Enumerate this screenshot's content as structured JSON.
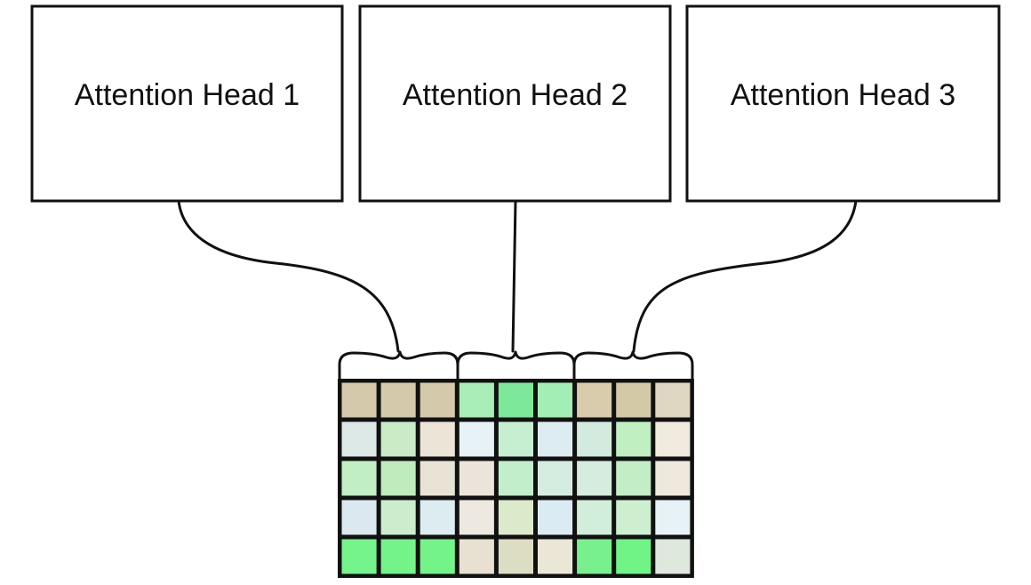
{
  "heads": [
    {
      "label": "Attention Head 1"
    },
    {
      "label": "Attention Head 2"
    },
    {
      "label": "Attention Head 3"
    }
  ],
  "grid": {
    "rows": 5,
    "cols": 9,
    "border_color": "#111111",
    "cell_colors": [
      [
        "#d4c9ab",
        "#d4c9ab",
        "#d4c9ab",
        "#a9eeb8",
        "#7ee89a",
        "#a2eeb5",
        "#d8ccad",
        "#d4c9a6",
        "#e0d7c2"
      ],
      [
        "#dde9e7",
        "#c9ecc6",
        "#ece4d6",
        "#e7f2f7",
        "#c6efd1",
        "#dcecf2",
        "#d3eade",
        "#c0efc2",
        "#f0eadf"
      ],
      [
        "#c2eec4",
        "#beecbc",
        "#e8e3d4",
        "#ebe4da",
        "#c2eecb",
        "#d4ede0",
        "#d6ecde",
        "#c3eec5",
        "#efe8dc"
      ],
      [
        "#dce8ef",
        "#ccecce",
        "#dcecf0",
        "#ede8e0",
        "#dceacc",
        "#dbebf3",
        "#d0eeda",
        "#cdefd0",
        "#e6f2f5"
      ],
      [
        "#74f48a",
        "#73f388",
        "#73f388",
        "#e8e1d1",
        "#dcddc3",
        "#ebe7d6",
        "#78f08d",
        "#6ff485",
        "#dfe8dc"
      ]
    ]
  }
}
